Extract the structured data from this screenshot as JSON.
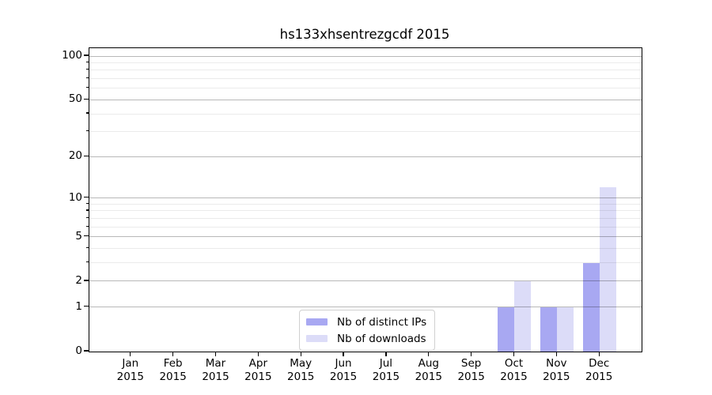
{
  "chart_data": {
    "type": "bar",
    "title": "hs133xhsentrezgcdf 2015",
    "categories": [
      "Jan",
      "Feb",
      "Mar",
      "Apr",
      "May",
      "Jun",
      "Jul",
      "Aug",
      "Sep",
      "Oct",
      "Nov",
      "Dec"
    ],
    "category_year": "2015",
    "series": [
      {
        "name": "Nb of distinct IPs",
        "color": "#a8a8f2",
        "values": [
          0,
          0,
          0,
          0,
          0,
          0,
          0,
          0,
          0,
          1,
          1,
          3
        ]
      },
      {
        "name": "Nb of downloads",
        "color": "#dcdcf8",
        "values": [
          0,
          0,
          0,
          0,
          0,
          0,
          0,
          0,
          0,
          2,
          1,
          12
        ]
      }
    ],
    "xlabel": "",
    "ylabel": "",
    "yscale": "log1p",
    "ylim": [
      0,
      113
    ],
    "y_major_ticks": [
      0,
      1,
      2,
      5,
      10,
      20,
      50,
      100
    ],
    "y_minor_ticks": [
      3,
      4,
      6,
      7,
      8,
      9,
      30,
      40,
      60,
      70,
      80,
      90
    ],
    "grid": true,
    "legend_position": "lower center"
  },
  "style": {
    "background": "#ffffff",
    "axis_color": "#000000",
    "major_grid_color": "rgba(0,0,0,0.28)",
    "minor_grid_color": "rgba(0,0,0,0.08)",
    "legend_border_color": "#d0d0d0",
    "text_color": "#000000"
  }
}
